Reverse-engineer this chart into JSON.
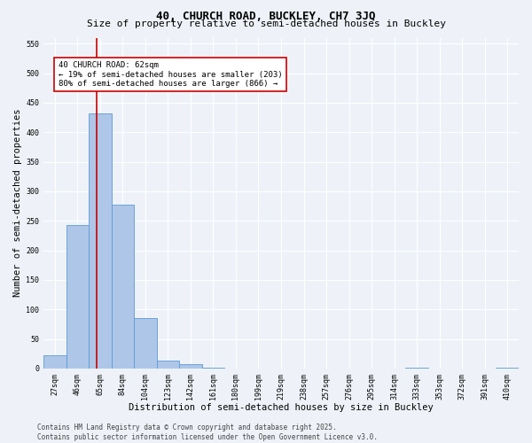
{
  "title": "40, CHURCH ROAD, BUCKLEY, CH7 3JQ",
  "subtitle": "Size of property relative to semi-detached houses in Buckley",
  "xlabel": "Distribution of semi-detached houses by size in Buckley",
  "ylabel": "Number of semi-detached properties",
  "bin_labels": [
    "27sqm",
    "46sqm",
    "65sqm",
    "84sqm",
    "104sqm",
    "123sqm",
    "142sqm",
    "161sqm",
    "180sqm",
    "199sqm",
    "219sqm",
    "238sqm",
    "257sqm",
    "276sqm",
    "295sqm",
    "314sqm",
    "333sqm",
    "353sqm",
    "372sqm",
    "391sqm",
    "410sqm"
  ],
  "bar_values": [
    22,
    243,
    432,
    277,
    86,
    14,
    8,
    1,
    0,
    0,
    0,
    0,
    0,
    0,
    0,
    0,
    2,
    0,
    0,
    0,
    1
  ],
  "bar_color": "#aec6e8",
  "bar_edge_color": "#5b9bd5",
  "ylim": [
    0,
    560
  ],
  "yticks": [
    0,
    50,
    100,
    150,
    200,
    250,
    300,
    350,
    400,
    450,
    500,
    550
  ],
  "annotation_text": "40 CHURCH ROAD: 62sqm\n← 19% of semi-detached houses are smaller (203)\n80% of semi-detached houses are larger (866) →",
  "annotation_box_color": "#ffffff",
  "annotation_box_edge_color": "#cc0000",
  "red_line_color": "#cc0000",
  "footer_line1": "Contains HM Land Registry data © Crown copyright and database right 2025.",
  "footer_line2": "Contains public sector information licensed under the Open Government Licence v3.0.",
  "bg_color": "#eef2f8",
  "grid_color": "#ffffff",
  "title_fontsize": 9,
  "subtitle_fontsize": 8,
  "axis_label_fontsize": 7.5,
  "tick_fontsize": 6,
  "annotation_fontsize": 6.5,
  "footer_fontsize": 5.5
}
